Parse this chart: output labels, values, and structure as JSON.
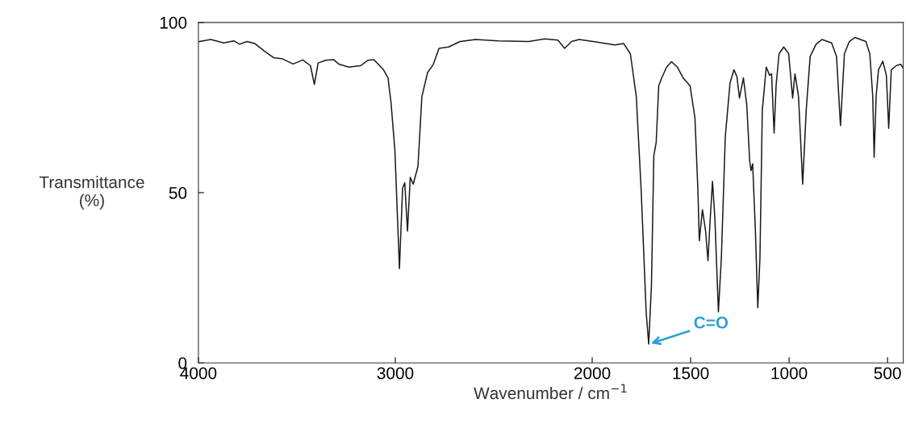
{
  "chart_data": {
    "type": "line",
    "xlabel": "Wavenumber / cm$^{−1}$",
    "ylabel": "Transmittance\n(%)",
    "xlim": [
      4000,
      420
    ],
    "ylim": [
      0,
      100
    ],
    "xticks": [
      4000,
      3000,
      2000,
      1500,
      1000,
      500
    ],
    "yticks": [
      0,
      50,
      100
    ],
    "grid": false,
    "marker": "none",
    "line_style": "solid",
    "annotations": [
      {
        "text": "C=O",
        "x": 1713,
        "y": 5.5
      }
    ],
    "series": [
      {
        "color": "#1a1a1a",
        "x": [
          3996,
          3937,
          3871,
          3820,
          3791,
          3753,
          3713,
          3665,
          3616,
          3577,
          3519,
          3470,
          3431,
          3411,
          3392,
          3353,
          3314,
          3285,
          3236,
          3177,
          3139,
          3109,
          3060,
          3037,
          3022,
          3002,
          2979,
          2963,
          2952,
          2938,
          2924,
          2909,
          2885,
          2865,
          2836,
          2807,
          2778,
          2729,
          2671,
          2592,
          2475,
          2321,
          2242,
          2174,
          2140,
          2105,
          2066,
          1974,
          1964,
          1885,
          1840,
          1806,
          1776,
          1751,
          1726,
          1713,
          1699,
          1687,
          1675,
          1662,
          1647,
          1622,
          1597,
          1568,
          1538,
          1503,
          1478,
          1463,
          1456,
          1440,
          1424,
          1412,
          1401,
          1389,
          1377,
          1359,
          1344,
          1324,
          1315,
          1300,
          1280,
          1265,
          1252,
          1232,
          1215,
          1200,
          1193,
          1185,
          1171,
          1159,
          1148,
          1136,
          1116,
          1099,
          1089,
          1076,
          1066,
          1051,
          1027,
          1002,
          982,
          970,
          952,
          931,
          913,
          893,
          863,
          833,
          784,
          759,
          739,
          719,
          694,
          665,
          610,
          590,
          575,
          568,
          558,
          546,
          524,
          506,
          494,
          481,
          456,
          432,
          420
        ],
        "values": [
          94.4,
          95.0,
          94,
          94.6,
          93.6,
          94.4,
          93.8,
          91.6,
          89.6,
          89.4,
          87.8,
          89,
          87.3,
          81.8,
          88.1,
          88.9,
          89.1,
          87.7,
          86.9,
          87.3,
          88.9,
          89.1,
          86.1,
          83.7,
          76.6,
          62.4,
          27.7,
          51.3,
          52.9,
          38.7,
          54.5,
          52.5,
          57.7,
          78.2,
          85.3,
          87.7,
          92.4,
          92.8,
          94.4,
          95.0,
          94.6,
          94.4,
          95.2,
          94.8,
          92.4,
          94.4,
          95,
          94.2,
          94.1,
          93.4,
          93.8,
          90.8,
          78.2,
          50.5,
          15,
          5.5,
          22.9,
          60.8,
          64.8,
          81.4,
          83.7,
          86.9,
          88.5,
          86.9,
          83.7,
          81.4,
          71.9,
          50.5,
          35.9,
          45,
          38.7,
          30,
          41.9,
          53.3,
          42.7,
          15,
          30.8,
          66.4,
          72.3,
          82.2,
          86.1,
          84.1,
          77.8,
          83.7,
          75.8,
          59.2,
          56.5,
          58.5,
          38.7,
          16.2,
          30.8,
          74.2,
          86.9,
          84.5,
          84.9,
          67.5,
          81.4,
          90.8,
          92.8,
          90.8,
          77.8,
          84.9,
          78.2,
          52.5,
          74.2,
          90,
          93.6,
          95,
          94,
          90,
          69.7,
          90.8,
          94.4,
          95.6,
          94.4,
          90.8,
          78.2,
          60.4,
          78.2,
          86.1,
          88.6,
          84.5,
          68.9,
          86.1,
          87.3,
          87.7,
          86.5
        ]
      }
    ]
  }
}
